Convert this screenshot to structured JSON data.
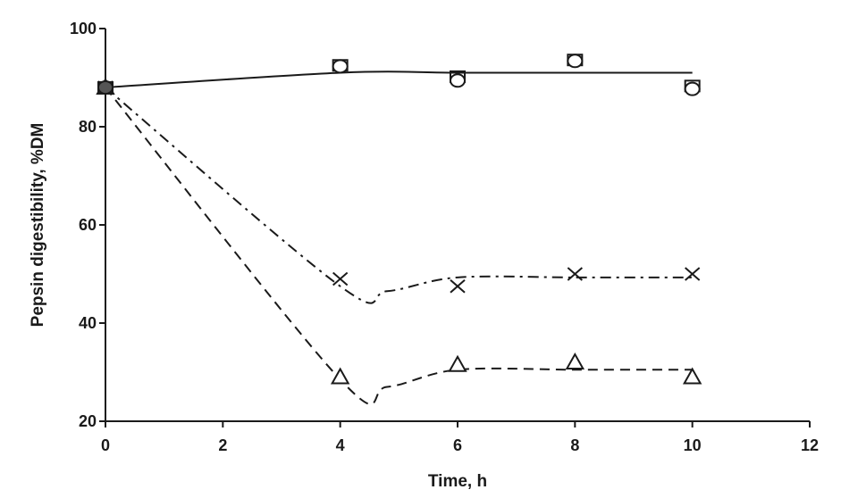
{
  "chart_data": {
    "type": "line",
    "title": "",
    "xlabel": "Time, h",
    "ylabel": "Pepsin digestibility, %DM",
    "xlim": [
      0,
      12
    ],
    "ylim": [
      20,
      100
    ],
    "xticks": [
      "0",
      "2",
      "4",
      "6",
      "8",
      "10",
      "12"
    ],
    "yticks": [
      "20",
      "40",
      "60",
      "80",
      "100"
    ],
    "grid": false,
    "legend": "none",
    "series": [
      {
        "marker": "circle",
        "line_style": "solid",
        "points": [
          [
            0,
            88
          ],
          [
            4,
            92.3
          ],
          [
            6,
            89.4
          ],
          [
            8,
            93.4
          ],
          [
            10,
            87.7
          ]
        ],
        "fit_line": [
          [
            0,
            88
          ],
          [
            4,
            91
          ],
          [
            6,
            91
          ],
          [
            8,
            91
          ],
          [
            10,
            91
          ]
        ]
      },
      {
        "marker": "square",
        "line_style": "solid",
        "points": [
          [
            0,
            88
          ],
          [
            4,
            92.5
          ],
          [
            6,
            90.2
          ],
          [
            8,
            93.6
          ],
          [
            10,
            88.3
          ]
        ]
      },
      {
        "marker": "cross",
        "line_style": "dash-dot",
        "points": [
          [
            0,
            88
          ],
          [
            4,
            49
          ],
          [
            6,
            47.5
          ],
          [
            8,
            50
          ],
          [
            10,
            50
          ]
        ],
        "fit_line": [
          [
            0,
            88
          ],
          [
            4,
            47.5
          ],
          [
            4.8,
            46.5
          ],
          [
            6,
            49.3
          ],
          [
            8,
            49.3
          ],
          [
            10,
            49.3
          ]
        ]
      },
      {
        "marker": "triangle",
        "line_style": "dashed",
        "points": [
          [
            0,
            88
          ],
          [
            4,
            29
          ],
          [
            6,
            31.5
          ],
          [
            8,
            32
          ],
          [
            10,
            29
          ]
        ],
        "fit_line": [
          [
            0,
            88
          ],
          [
            4,
            28.5
          ],
          [
            4.8,
            27
          ],
          [
            6,
            30.5
          ],
          [
            8,
            30.5
          ],
          [
            10,
            30.5
          ]
        ]
      }
    ],
    "colors": {
      "ink": "#1a1a1a",
      "marker_fill": "#ffffff",
      "start_marker_fill": "#555555"
    }
  }
}
